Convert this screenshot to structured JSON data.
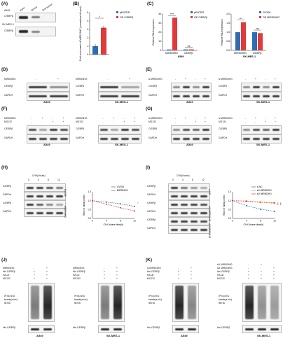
{
  "panels": {
    "A": {
      "letter": "(A)",
      "cells_a549": "A549",
      "cells_skmes": "SK-MES-1",
      "lanes": [
        "Input",
        "Sense",
        "Anti-sense"
      ],
      "protein": "C/EBPβ"
    },
    "B": {
      "letter": "(B)",
      "ylabel": "Fold enrichment of MIR503HG (normalized of input)",
      "significance": "*",
      "chart_data": {
        "type": "bar",
        "categories": [
          "pENTER",
          "OE C/EBPβ"
        ],
        "values": [
          1.0,
          3.2
        ],
        "ylim": [
          0,
          5
        ],
        "yticks": [
          "0",
          "1",
          "2",
          "3",
          "4",
          "5"
        ]
      },
      "legend": [
        "pENTER",
        "OE C/EBPβ"
      ],
      "colors": [
        "#2f6db3",
        "#e03a3a"
      ]
    },
    "C": {
      "letter": "(C)",
      "left": {
        "ylabel": "Relative RNA expression",
        "chart_data": {
          "type": "bar",
          "categories": [
            "MIR503HG",
            "C/EBPβ"
          ],
          "series": [
            {
              "name": "pENTER",
              "values": [
                1.0,
                1.05
              ]
            },
            {
              "name": "OE C/EBPβ",
              "values": [
                36.0,
                1.1
              ]
            }
          ],
          "ylim": [
            0,
            40
          ],
          "yticks": [
            "0",
            "10",
            "20",
            "30",
            "40"
          ]
        },
        "sig": [
          "****",
          "ns"
        ],
        "cell": "A549",
        "legend": [
          "pENTER",
          "OE C/EBPβ"
        ]
      },
      "right": {
        "ylabel": "Relative RNA expression",
        "chart_data": {
          "type": "bar",
          "categories": [
            "MIR503HG",
            "C/EBPβ"
          ],
          "series": [
            {
              "name": "GV208",
              "values": [
                1.0,
                1.0
              ]
            },
            {
              "name": "OE MIR503HG",
              "values": [
                1.55,
                0.95
              ]
            }
          ],
          "ylim": [
            0,
            2.0
          ],
          "yticks": [
            "0.0",
            "0.5",
            "1.0",
            "1.5",
            "2.0"
          ]
        },
        "sig": [
          "***",
          "ns"
        ],
        "cell": "SK-MES-1",
        "legend": [
          "GV208",
          "OE MIR503HG"
        ]
      },
      "colors": [
        "#2f6db3",
        "#e03a3a"
      ]
    },
    "D": {
      "letter": "(D)",
      "cond": "MIR503HG",
      "signs": [
        "-",
        "+"
      ],
      "proteins": [
        "C/EBPβ",
        "GAPDH"
      ],
      "cells": [
        "A549",
        "SK-MES-1"
      ]
    },
    "E": {
      "letter": "(E)",
      "cond": "si MIR503HG",
      "signs": [
        "-",
        "+",
        "-",
        "+"
      ],
      "proteins": [
        "C/EBPβ",
        "GAPDH"
      ],
      "cells": [
        "A549",
        "SK-MES-1"
      ]
    },
    "F": {
      "letter": "(F)",
      "cond1": "MIR503HG",
      "cond2": "MG132",
      "signs1": [
        "-",
        "+",
        "-",
        "+"
      ],
      "signs2": [
        "-",
        "-",
        "+",
        "+"
      ],
      "proteins": [
        "C/EBPβ",
        "GAPDH"
      ],
      "cells": [
        "A549",
        "SK-MES-1"
      ]
    },
    "G": {
      "letter": "(G)",
      "cond1": "si MIR503HG",
      "cond2": "MG132",
      "signs1": [
        "-",
        "+",
        "-",
        "+"
      ],
      "signs2": [
        "-",
        "-",
        "+",
        "+"
      ],
      "proteins": [
        "C/EBPβ",
        "GAPDH"
      ],
      "cells": [
        "A549",
        "SK-MES-1"
      ]
    },
    "H": {
      "letter": "(H)",
      "chx": "CHX(Hours)",
      "times": [
        "0",
        "4",
        "8",
        "12"
      ],
      "proteins": [
        "C/EBPβ",
        "GAPDH",
        "C/EBPβ",
        "GAPDH"
      ],
      "groups": [
        "GV208",
        "MIR503HG"
      ],
      "chart_data": {
        "type": "line",
        "x": [
          0,
          4,
          8,
          12
        ],
        "series": [
          {
            "name": "GV208",
            "values": [
              1.0,
              0.92,
              0.82,
              0.68
            ]
          },
          {
            "name": "MIR503HG",
            "values": [
              1.0,
              0.8,
              0.6,
              0.42
            ]
          }
        ],
        "xlabel": "CHX chase time(h)",
        "ylabel": "Ratio of initial protein",
        "ylim": [
          0,
          1.5
        ],
        "yticks": [
          "0.0",
          "0.5",
          "1.0",
          "1.5"
        ],
        "xticks": [
          "0",
          "4",
          "8",
          "12"
        ]
      },
      "colors": [
        "#2f6db3",
        "#e03a3a"
      ],
      "sig": "*"
    },
    "I": {
      "letter": "(I)",
      "chx": "CHX(Hours)",
      "times": [
        "0",
        "4",
        "8",
        "12"
      ],
      "proteins": [
        "C/EBPβ",
        "GAPDH",
        "C/EBPβ",
        "GAPDH",
        "C/EBPβ",
        "GAPDH"
      ],
      "groups": [
        "si NC",
        "si1 MIR503HG",
        "si2 MIR503HG"
      ],
      "chart_data": {
        "type": "line",
        "x": [
          0,
          4,
          8,
          12
        ],
        "series": [
          {
            "name": "si NC",
            "values": [
              1.0,
              0.72,
              0.52,
              0.4
            ]
          },
          {
            "name": "si1 MIR503HG",
            "values": [
              1.0,
              0.95,
              0.9,
              0.85
            ]
          },
          {
            "name": "si2 MIR503HG",
            "values": [
              1.0,
              0.98,
              0.92,
              0.88
            ]
          }
        ],
        "xlabel": "CHX chase time(h)",
        "ylabel": "Ratio of initial protein",
        "ylim": [
          0,
          1.5
        ],
        "yticks": [
          "0.0",
          "0.5",
          "1.0",
          "1.5"
        ],
        "xticks": [
          "0",
          "4",
          "8",
          "12"
        ]
      },
      "colors": [
        "#2f6db3",
        "#e0922a",
        "#e03a3a"
      ],
      "sig": [
        "***",
        "***"
      ]
    },
    "J": {
      "letter": "(J)",
      "rows": [
        "MIR503HG",
        "His-C/EBPβ",
        "HA-ub",
        "MG132"
      ],
      "signs": [
        [
          "-",
          "+"
        ],
        [
          "+",
          "+"
        ],
        [
          "+",
          "+"
        ],
        [
          "+",
          "+"
        ]
      ],
      "ip": [
        "IP:Ni-NTA",
        "beads(a-his)",
        "IB:HA"
      ],
      "bottom": "His-C/EBPβ",
      "cells": [
        "A549",
        "SK-MES-1"
      ]
    },
    "K": {
      "letter": "(K)",
      "left_rows": [
        "si MIR503HG",
        "His-C/EBPβ",
        "HA-ub",
        "MG132"
      ],
      "left_signs": [
        [
          "-",
          "+"
        ],
        [
          "+",
          "+"
        ],
        [
          "+",
          "+"
        ],
        [
          "+",
          "+"
        ]
      ],
      "right_rows": [
        "si1 MIR503HG",
        "si2 MIR503HG",
        "His-C/EBPβ",
        "HA-ub",
        "MG132"
      ],
      "right_signs": [
        [
          "-",
          "+",
          "-"
        ],
        [
          "-",
          "-",
          "+"
        ],
        [
          "+",
          "+",
          "+"
        ],
        [
          "+",
          "+",
          "+"
        ],
        [
          "+",
          "+",
          "+"
        ]
      ],
      "ip": [
        "IP:Ni-NTA",
        "beads(a-his)",
        "IB:HA"
      ],
      "bottom": "His-C/EBPβ",
      "cells": [
        "A549",
        "SK-MES-1"
      ]
    }
  }
}
